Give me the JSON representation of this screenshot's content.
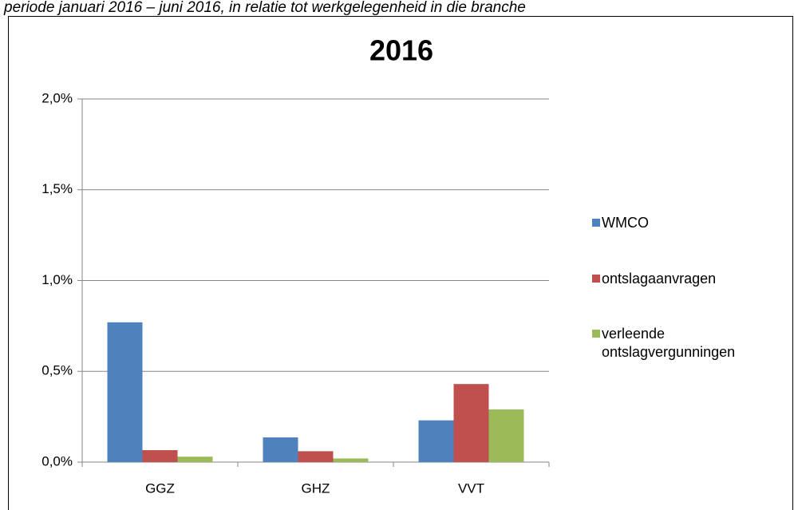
{
  "chart_data": {
    "type": "bar",
    "caption": "periode januari 2016 – juni 2016, in relatie tot werkgelegenheid in die branche",
    "title": "2016",
    "categories": [
      "GGZ",
      "GHZ",
      "VVT"
    ],
    "series": [
      {
        "name": "WMCO",
        "color": "#4f81bd",
        "values": [
          0.77,
          0.136,
          0.23
        ]
      },
      {
        "name": "ontslagaanvragen",
        "color": "#c0504d",
        "values": [
          0.066,
          0.06,
          0.43
        ]
      },
      {
        "name": "verleende ontslagvergunningen",
        "color": "#9bbb59",
        "values": [
          0.03,
          0.02,
          0.29
        ]
      }
    ],
    "ylim": [
      0,
      2
    ],
    "yticks": [
      {
        "value": 0,
        "label": "0,0%"
      },
      {
        "value": 0.5,
        "label": "0,5%"
      },
      {
        "value": 1,
        "label": "1,0%"
      },
      {
        "value": 1.5,
        "label": "1,5%"
      },
      {
        "value": 2,
        "label": "2,0%"
      }
    ],
    "grid": true,
    "legend": "right"
  }
}
